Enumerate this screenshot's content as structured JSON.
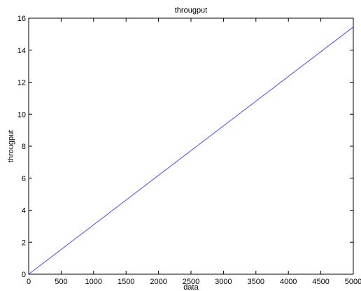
{
  "chart_data": {
    "type": "line",
    "title": "througput",
    "xlabel": "data",
    "ylabel": "througput",
    "xlim": [
      0,
      5000
    ],
    "ylim": [
      0,
      16
    ],
    "grid": false,
    "x_ticks": [
      0,
      500,
      1000,
      1500,
      2000,
      2500,
      3000,
      3500,
      4000,
      4500,
      5000
    ],
    "y_ticks": [
      0,
      2,
      4,
      6,
      8,
      10,
      12,
      14,
      16
    ],
    "series": [
      {
        "color": "#4a4aff",
        "x": [
          0,
          5000
        ],
        "y": [
          0,
          15.45
        ]
      }
    ]
  }
}
